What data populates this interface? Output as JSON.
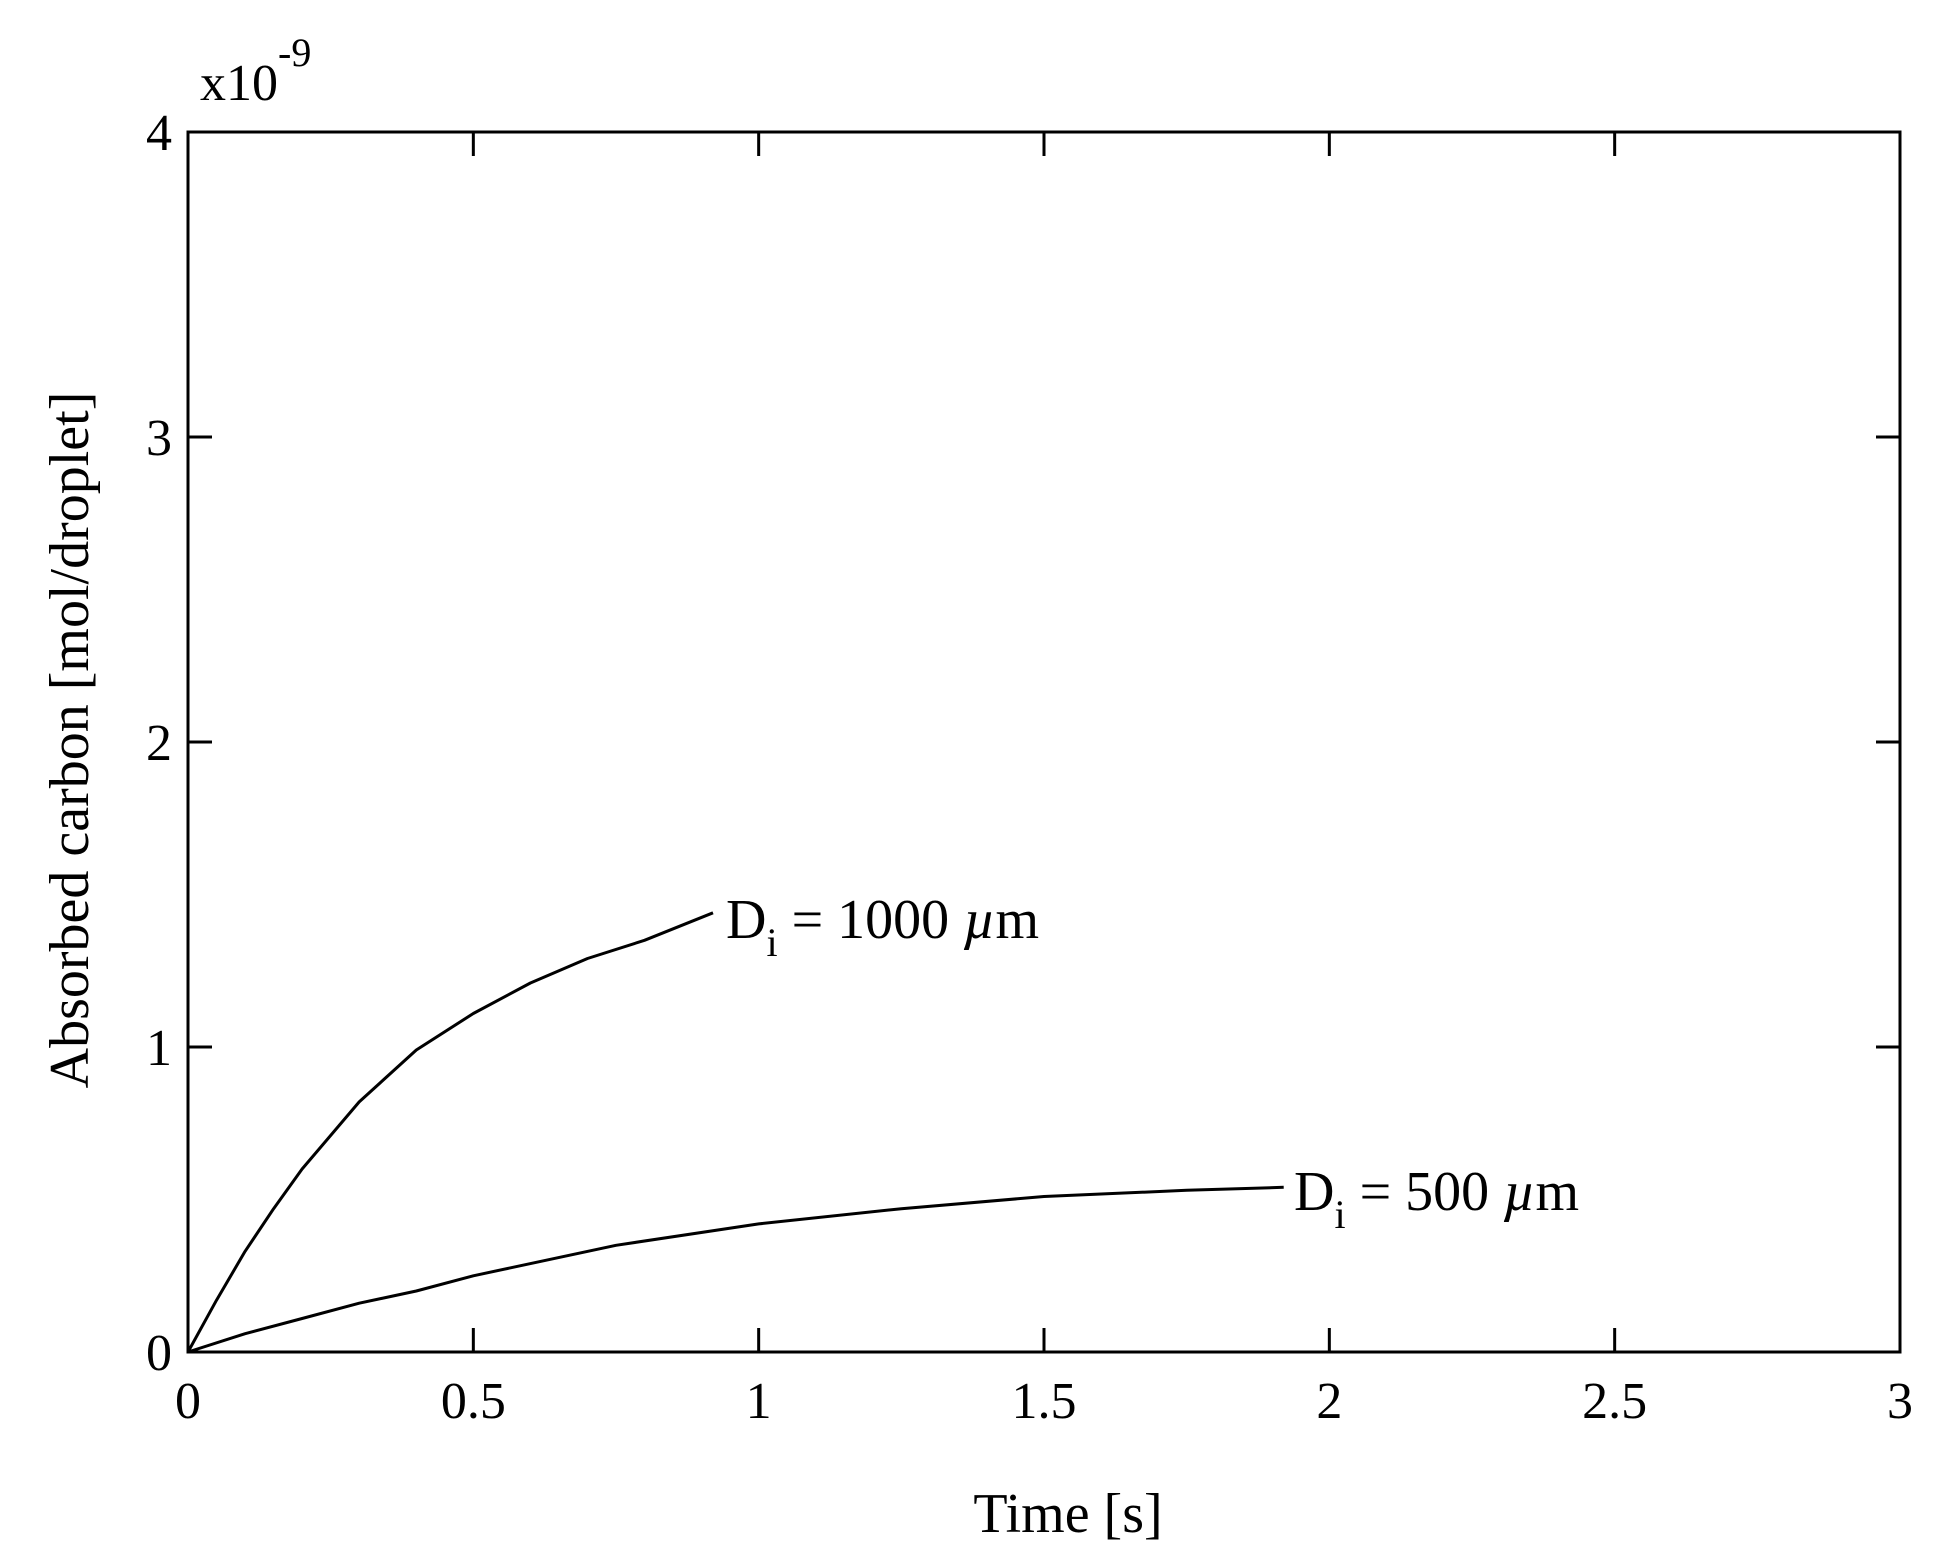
{
  "chart_data": {
    "type": "line",
    "title": "",
    "xlabel": "Time [s]",
    "ylabel": "Absorbed carbon [mol/droplet]",
    "y_multiplier_label": {
      "base": "x10",
      "exponent": "-9"
    },
    "xlim": [
      0,
      3
    ],
    "ylim": [
      0,
      4
    ],
    "x_ticks": [
      0,
      0.5,
      1,
      1.5,
      2,
      2.5,
      3
    ],
    "x_tick_labels": [
      "0",
      "0.5",
      "1",
      "1.5",
      "2",
      "2.5",
      "3"
    ],
    "y_ticks": [
      0,
      1,
      2,
      3,
      4
    ],
    "y_tick_labels": [
      "0",
      "1",
      "2",
      "3",
      "4"
    ],
    "grid": false,
    "series": [
      {
        "name": "D_i = 1000 µm",
        "label": {
          "main": "D",
          "subscript": "i",
          "rest": " = 1000 ",
          "unit_greek": "µ",
          "unit": "m"
        },
        "x": [
          0,
          0.05,
          0.1,
          0.15,
          0.2,
          0.3,
          0.4,
          0.5,
          0.6,
          0.7,
          0.8,
          0.92
        ],
        "y": [
          0,
          0.17,
          0.33,
          0.47,
          0.6,
          0.82,
          0.99,
          1.11,
          1.21,
          1.29,
          1.35,
          1.44
        ]
      },
      {
        "name": "D_i = 500 µm",
        "label": {
          "main": "D",
          "subscript": "i",
          "rest": " = 500 ",
          "unit_greek": "µ",
          "unit": "m"
        },
        "x": [
          0,
          0.1,
          0.2,
          0.3,
          0.4,
          0.5,
          0.75,
          1.0,
          1.25,
          1.5,
          1.75,
          1.92
        ],
        "y": [
          0,
          0.06,
          0.11,
          0.16,
          0.2,
          0.25,
          0.35,
          0.42,
          0.47,
          0.51,
          0.53,
          0.54
        ]
      }
    ]
  }
}
